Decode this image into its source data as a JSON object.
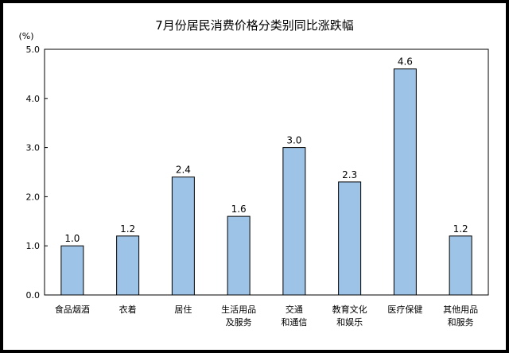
{
  "chart_data": {
    "type": "bar",
    "title": "7月份居民消费价格分类别同比涨跌幅",
    "ylabel": "(%)",
    "xlabel": "",
    "ylim": [
      0,
      5
    ],
    "yticks": [
      "0.0",
      "1.0",
      "2.0",
      "3.0",
      "4.0",
      "5.0"
    ],
    "grid": false,
    "categories": [
      [
        "食品烟酒"
      ],
      [
        "衣着"
      ],
      [
        "居住"
      ],
      [
        "生活用品",
        "及服务"
      ],
      [
        "交通",
        "和通信"
      ],
      [
        "教育文化",
        "和娱乐"
      ],
      [
        "医疗保健"
      ],
      [
        "其他用品",
        "和服务"
      ]
    ],
    "values": [
      1.0,
      1.2,
      2.4,
      1.6,
      3.0,
      2.3,
      4.6,
      1.2
    ],
    "data_labels": [
      "1.0",
      "1.2",
      "2.4",
      "1.6",
      "3.0",
      "2.3",
      "4.6",
      "1.2"
    ],
    "bar_color": "#9dc3e6",
    "bar_edge_color": "#000000"
  }
}
